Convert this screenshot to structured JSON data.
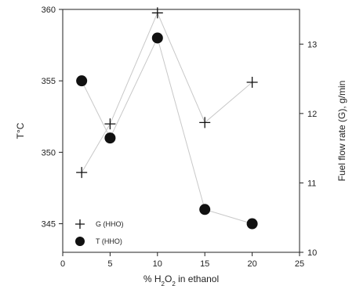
{
  "chart_data": {
    "type": "line",
    "xlabel_parts": [
      "% H",
      "2",
      "O",
      "2",
      " in ethanol"
    ],
    "ylabel_left": "T°C",
    "ylabel_right": "Fuel flow rate (G), g/min",
    "xlim": [
      0,
      25
    ],
    "ylim_left": [
      343,
      360
    ],
    "ylim_right": [
      10,
      13.5
    ],
    "x_ticks": [
      0,
      5,
      10,
      15,
      20,
      25
    ],
    "y_left_ticks": [
      345,
      350,
      355,
      360
    ],
    "y_right_ticks": [
      10,
      11,
      12,
      13
    ],
    "series": [
      {
        "name": "G (HHO)",
        "axis": "right",
        "marker": "plus",
        "x": [
          2,
          5,
          10,
          15,
          20
        ],
        "values": [
          11.15,
          11.85,
          13.45,
          11.87,
          12.45
        ]
      },
      {
        "name": "T (HHO)",
        "axis": "left",
        "marker": "circle",
        "x": [
          2,
          5,
          10,
          15,
          20
        ],
        "values": [
          355,
          351,
          358,
          346,
          345
        ]
      }
    ],
    "legend_position": "bottom-left",
    "grid": false,
    "colors": {
      "axis": "#222222",
      "line": "#c8c8c8",
      "marker": "#111111"
    }
  }
}
